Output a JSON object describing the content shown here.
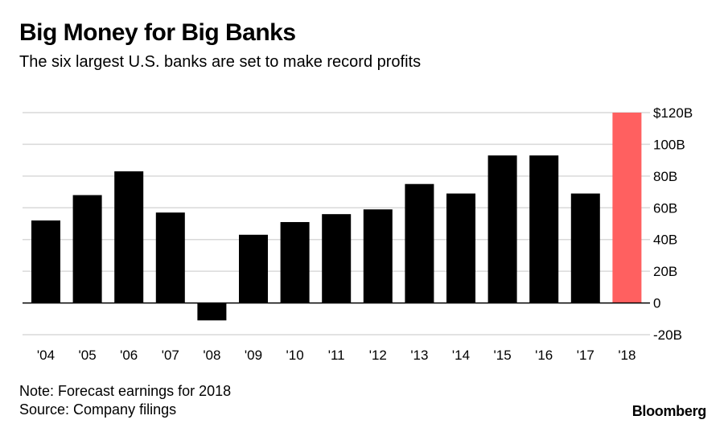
{
  "header": {
    "title": "Big Money for Big Banks",
    "subtitle": "The six largest U.S. banks are set to make record profits"
  },
  "footer": {
    "note": "Note: Forecast earnings for 2018",
    "source": "Source: Company filings",
    "brand": "Bloomberg"
  },
  "colors": {
    "bar": "#000000",
    "forecast_bar": "#ff6060",
    "grid": "#d9d9d9",
    "zero_line": "#000000",
    "text": "#000000"
  },
  "chart_data": {
    "type": "bar",
    "categories": [
      "'04",
      "'05",
      "'06",
      "'07",
      "'08",
      "'09",
      "'10",
      "'11",
      "'12",
      "'13",
      "'14",
      "'15",
      "'16",
      "'17",
      "'18"
    ],
    "values": [
      52,
      68,
      83,
      57,
      -11,
      43,
      51,
      56,
      59,
      75,
      69,
      93,
      93,
      69,
      120
    ],
    "highlight_index": 14,
    "ylim": [
      -20,
      120
    ],
    "yticks": [
      -20,
      0,
      20,
      40,
      60,
      80,
      100,
      120
    ],
    "ytick_labels": [
      "-20B",
      "0",
      "20B",
      "40B",
      "60B",
      "80B",
      "100B",
      "$120B"
    ],
    "y_axis_position": "right",
    "grid": true
  }
}
